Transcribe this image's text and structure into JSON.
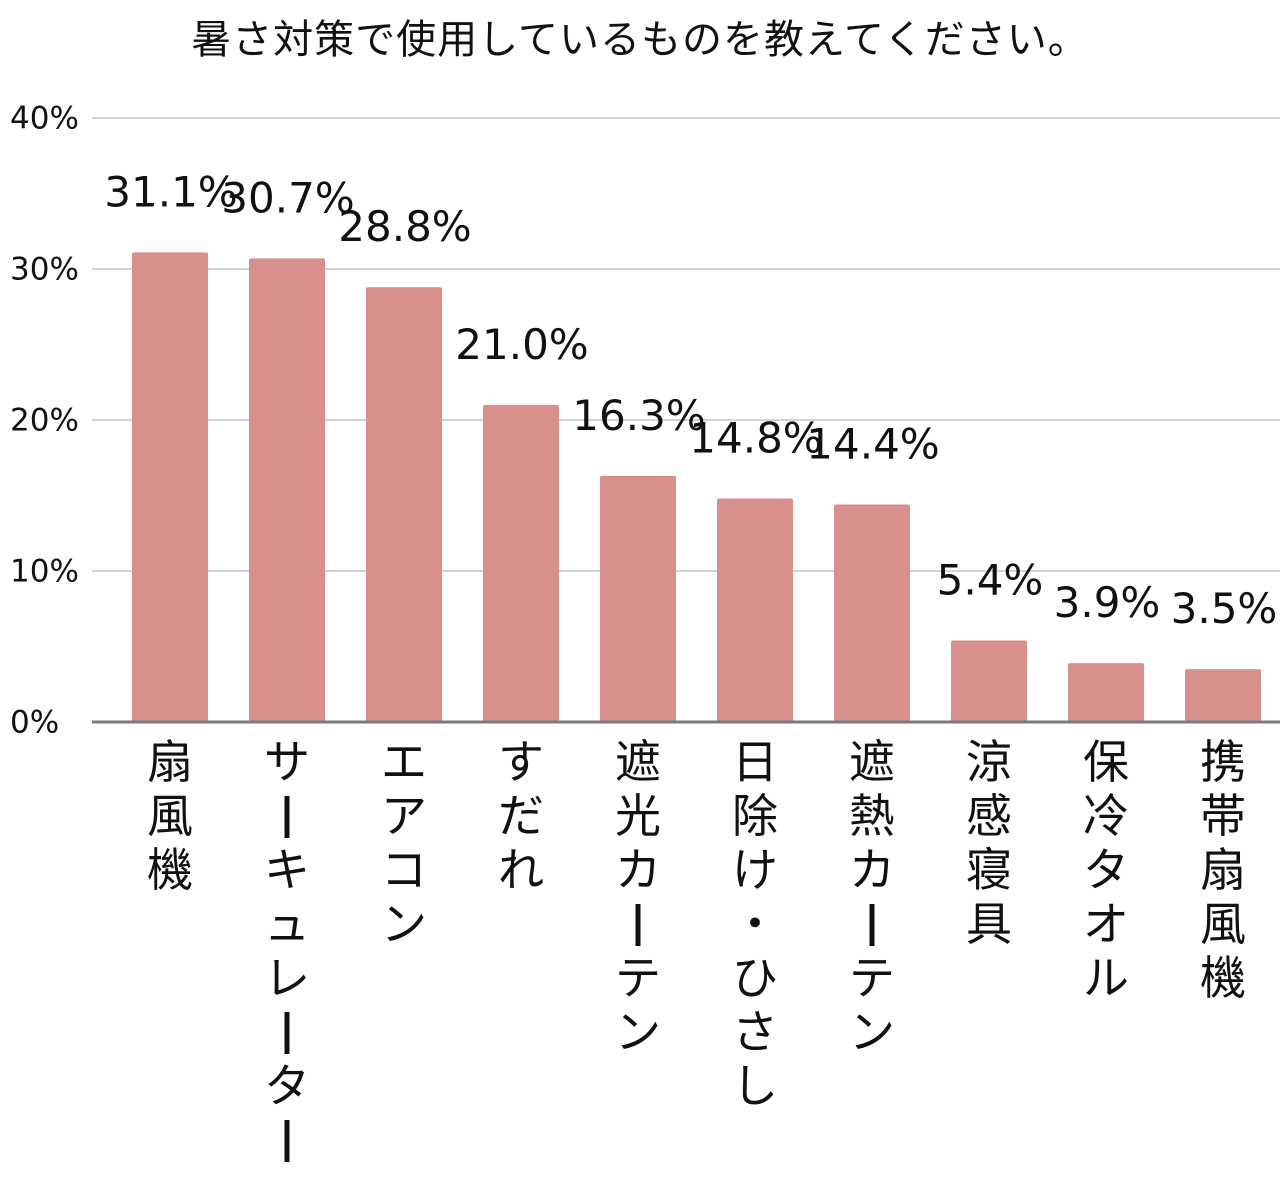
{
  "chart_data": {
    "type": "bar",
    "title": "暑さ対策で使用しているものを教えてください。",
    "xlabel": "",
    "ylabel": "",
    "categories": [
      "扇風機",
      "サーキュレーター",
      "エアコン",
      "すだれ",
      "遮光カーテン",
      "日除け・ひさし",
      "遮熱カーテン",
      "涼感寝具",
      "保冷タオル",
      "携帯扇風機"
    ],
    "values": [
      31.1,
      30.7,
      28.8,
      21.0,
      16.3,
      14.8,
      14.4,
      5.4,
      3.9,
      3.5
    ],
    "value_labels": [
      "31.1%",
      "30.7%",
      "28.8%",
      "21.0%",
      "16.3%",
      "14.8%",
      "14.4%",
      "5.4%",
      "3.9%",
      "3.5%"
    ],
    "ylim": [
      0,
      40
    ],
    "yticks": [
      0,
      10,
      20,
      30,
      40
    ],
    "ytick_labels": [
      "0%",
      "10%",
      "20%",
      "30%",
      "40%"
    ],
    "grid": true,
    "legend": "none",
    "bar_color": "#d9908c",
    "grid_color": "#d4d4d4",
    "axis_color": "#7a7a7a",
    "text_color": "#111111"
  }
}
